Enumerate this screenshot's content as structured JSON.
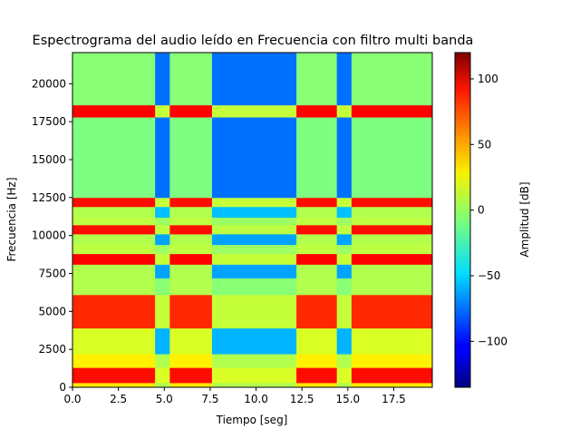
{
  "chart_data": {
    "type": "heatmap",
    "title": "Espectrograma del audio leído en Frecuencia con filtro multi banda",
    "xlabel": "Tiempo [seg]",
    "ylabel": "Frecuencia [Hz]",
    "xlim": [
      0,
      19.6
    ],
    "ylim": [
      0,
      22050
    ],
    "xticks": [
      0.0,
      2.5,
      5.0,
      7.5,
      10.0,
      12.5,
      15.0,
      17.5
    ],
    "xtick_labels": [
      "0.0",
      "2.5",
      "5.0",
      "7.5",
      "10.0",
      "12.5",
      "15.0",
      "17.5"
    ],
    "yticks": [
      0,
      2500,
      5000,
      7500,
      10000,
      12500,
      15000,
      17500,
      20000
    ],
    "ytick_labels": [
      "0",
      "2500",
      "5000",
      "7500",
      "10000",
      "12500",
      "15000",
      "17500",
      "20000"
    ],
    "colorbar": {
      "label": "Amplitud [dB]",
      "range": [
        -135,
        120
      ],
      "ticks": [
        100,
        50,
        0,
        -50,
        -100
      ],
      "tick_labels": [
        "100",
        "50",
        "0",
        "−50",
        "−100"
      ],
      "colormap": "jet"
    },
    "time_segments": [
      {
        "t0": 0.0,
        "t1": 4.5,
        "kind": "active"
      },
      {
        "t0": 4.5,
        "t1": 5.3,
        "kind": "narrow_gap"
      },
      {
        "t0": 5.3,
        "t1": 7.6,
        "kind": "active"
      },
      {
        "t0": 7.6,
        "t1": 12.2,
        "kind": "wide_gap"
      },
      {
        "t0": 12.2,
        "t1": 14.4,
        "kind": "active"
      },
      {
        "t0": 14.4,
        "t1": 15.2,
        "kind": "narrow_gap"
      },
      {
        "t0": 15.2,
        "t1": 19.6,
        "kind": "active"
      }
    ],
    "frequency_bands_hz": [
      {
        "f0": 0,
        "f1": 300,
        "active_db": 30,
        "gap_db": 5
      },
      {
        "f0": 300,
        "f1": 1300,
        "active_db": 85,
        "gap_db": 15
      },
      {
        "f0": 1300,
        "f1": 2200,
        "active_db": 28,
        "gap_db": 5
      },
      {
        "f0": 2200,
        "f1": 3900,
        "active_db": 15,
        "gap_db": -58
      },
      {
        "f0": 3900,
        "f1": 6100,
        "active_db": 78,
        "gap_db": 10
      },
      {
        "f0": 6100,
        "f1": 7200,
        "active_db": 5,
        "gap_db": -5
      },
      {
        "f0": 7200,
        "f1": 8100,
        "active_db": 5,
        "gap_db": -62
      },
      {
        "f0": 8100,
        "f1": 8800,
        "active_db": 88,
        "gap_db": 10
      },
      {
        "f0": 8800,
        "f1": 9400,
        "active_db": 8,
        "gap_db": 0
      },
      {
        "f0": 9400,
        "f1": 10100,
        "active_db": 5,
        "gap_db": -62
      },
      {
        "f0": 10100,
        "f1": 10700,
        "active_db": 85,
        "gap_db": 8
      },
      {
        "f0": 10700,
        "f1": 11200,
        "active_db": 8,
        "gap_db": 0
      },
      {
        "f0": 11200,
        "f1": 11900,
        "active_db": 5,
        "gap_db": -55
      },
      {
        "f0": 11900,
        "f1": 12500,
        "active_db": 85,
        "gap_db": 10
      },
      {
        "f0": 12500,
        "f1": 17800,
        "active_db": -8,
        "gap_db": -75
      },
      {
        "f0": 17800,
        "f1": 18600,
        "active_db": 88,
        "gap_db": 10
      },
      {
        "f0": 18600,
        "f1": 22050,
        "active_db": -5,
        "gap_db": -75
      }
    ]
  }
}
